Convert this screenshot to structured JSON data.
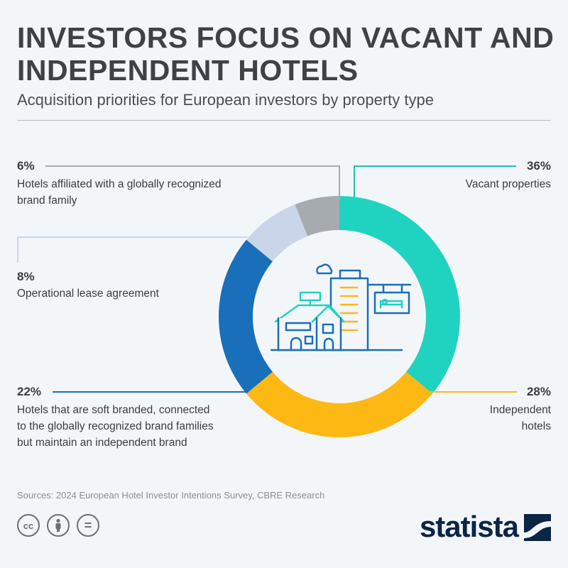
{
  "header": {
    "title": "INVESTORS FOCUS ON VACANT AND INDEPENDENT HOTELS",
    "subtitle": "Acquisition priorities for European investors by property type"
  },
  "chart_data": {
    "type": "pie",
    "donut": true,
    "title": "INVESTORS FOCUS ON VACANT AND INDEPENDENT HOTELS",
    "subtitle": "Acquisition priorities for European investors by property type",
    "slices": [
      {
        "label": "Vacant properties",
        "value": 36,
        "value_label": "36%",
        "color": "#1fd3c0"
      },
      {
        "label": "Independent hotels",
        "value": 28,
        "value_label": "28%",
        "color": "#fdb813"
      },
      {
        "label": "Hotels that are soft branded, connected to the globally recognized brand families but maintain an independent brand",
        "value": 22,
        "value_label": "22%",
        "color": "#1a6fba"
      },
      {
        "label": "Operational lease agreement",
        "value": 8,
        "value_label": "8%",
        "color": "#c9d6ea"
      },
      {
        "label": "Hotels affiliated with a globally recognized brand family",
        "value": 6,
        "value_label": "6%",
        "color": "#a6abb0"
      }
    ]
  },
  "labels": {
    "vacant": {
      "pct": "36%",
      "text": "Vacant properties"
    },
    "independent": {
      "pct": "28%",
      "text_line1": "Independent",
      "text_line2": "hotels"
    },
    "soft": {
      "pct": "22%",
      "line1": "Hotels that are soft branded, connected",
      "line2": "to the globally recognized brand families",
      "line3": "but maintain an independent brand"
    },
    "lease": {
      "pct": "8%",
      "text": "Operational lease agreement"
    },
    "affiliated": {
      "pct": "6%",
      "line1": "Hotels affiliated with a globally recognized",
      "line2": "brand family"
    }
  },
  "footer": {
    "source": "Sources:  2024 European Hotel Investor Intentions Survey, CBRE Research",
    "cc_icons": [
      "cc-icon",
      "by-icon",
      "nd-icon"
    ],
    "cc_label": "cc",
    "nd_label": "=",
    "brand": "statista"
  }
}
